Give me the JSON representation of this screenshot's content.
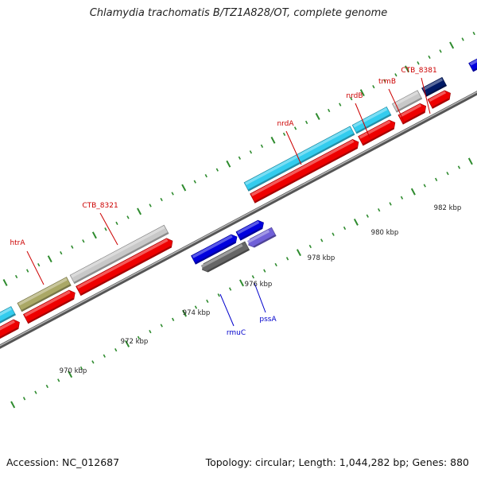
{
  "title": "Chlamydia trachomatis B/TZ1A828/OT, complete genome",
  "footer": {
    "accession": "Accession: NC_012687",
    "summary": "Topology: circular; Length: 1,044,282 bp; Genes: 880"
  },
  "colors": {
    "upper_label": "#cc0000",
    "lower_label": "#0000cc",
    "backbone": "#777777",
    "tick": "#2e8b2e",
    "cds_red": "#ee0000",
    "cyan": "#33ccee",
    "gray": "#c8c8c8",
    "navy": "#001a66",
    "olive": "#aaa866",
    "blue": "#0000dd",
    "violet": "#7060d8",
    "dark_gray": "#666666",
    "green": "#6b8e23"
  },
  "kbp_labels": [
    "970 kbp",
    "972 kbp",
    "974 kbp",
    "976 kbp",
    "978 kbp",
    "980 kbp",
    "982 kbp"
  ],
  "upper_gene_labels": [
    "htrA",
    "CTB_8321",
    "nrdA",
    "nrdB",
    "trmB",
    "CTB_8381"
  ],
  "lower_gene_labels": [
    "rmuC",
    "pssA"
  ]
}
